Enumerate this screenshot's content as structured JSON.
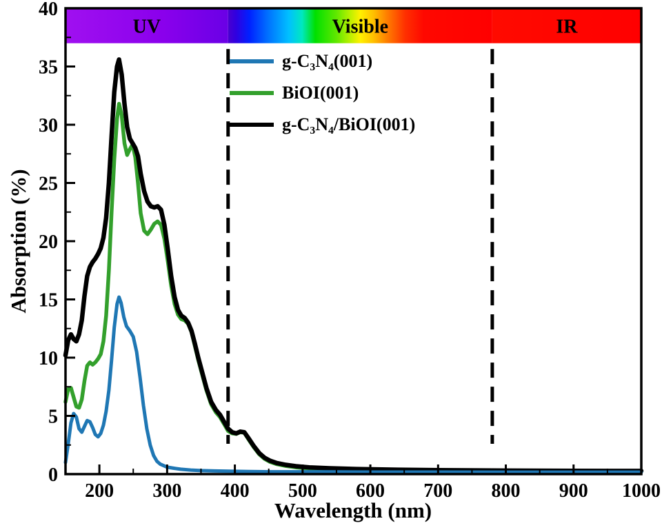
{
  "chart_data": {
    "type": "line",
    "title": "",
    "xlabel": "Wavelength (nm)",
    "ylabel": "Absorption (%)",
    "xlim": [
      150,
      1000
    ],
    "ylim": [
      0,
      40
    ],
    "x_ticks": [
      200,
      300,
      400,
      500,
      600,
      700,
      800,
      900,
      1000
    ],
    "x_minor_ticks": [
      250,
      350,
      450,
      550,
      650,
      750,
      850,
      950
    ],
    "y_ticks": [
      0,
      5,
      10,
      15,
      20,
      25,
      30,
      35,
      40
    ],
    "y_minor_ticks": [
      2.5,
      7.5,
      12.5,
      17.5,
      22.5,
      27.5,
      32.5,
      37.5
    ],
    "axis_color": "#000000",
    "background": "#ffffff",
    "grid": "off",
    "legend_position": "upper-center",
    "band_bottom_value": 37,
    "spectrum_bands": [
      {
        "label": "UV",
        "range": [
          150,
          390
        ],
        "gradient": [
          [
            "0%",
            "#A010F0"
          ],
          [
            "60%",
            "#8A00EC"
          ],
          [
            "100%",
            "#6A00E6"
          ]
        ]
      },
      {
        "label": "Visible",
        "range": [
          390,
          780
        ],
        "gradient": [
          [
            "0%",
            "#4A00D0"
          ],
          [
            "3%",
            "#3000E0"
          ],
          [
            "8%",
            "#0020FF"
          ],
          [
            "15%",
            "#0070FF"
          ],
          [
            "23%",
            "#00C0FF"
          ],
          [
            "28%",
            "#00E8C0"
          ],
          [
            "33%",
            "#00E000"
          ],
          [
            "41%",
            "#60E800"
          ],
          [
            "46%",
            "#B8F000"
          ],
          [
            "50%",
            "#FFF000"
          ],
          [
            "55%",
            "#FFC000"
          ],
          [
            "60%",
            "#FF8000"
          ],
          [
            "67%",
            "#FF3000"
          ],
          [
            "74%",
            "#FF0800"
          ],
          [
            "100%",
            "#FF0000"
          ]
        ]
      },
      {
        "label": "IR",
        "range": [
          780,
          1000
        ],
        "gradient": [
          [
            "0%",
            "#FF0A00"
          ],
          [
            "100%",
            "#FF0000"
          ]
        ]
      }
    ],
    "dashed_boundaries": {
      "x_values": [
        390,
        780
      ],
      "color": "#000000",
      "y_top": 36.5,
      "y_bottom": 2.6,
      "dash": "22 13",
      "width": 5
    },
    "series": [
      {
        "name": "g-C₃N₄(001)",
        "color": "#1F77B4",
        "width": 5,
        "x": [
          150,
          154,
          158,
          162,
          166,
          170,
          174,
          178,
          182,
          186,
          190,
          194,
          198,
          202,
          206,
          210,
          214,
          218,
          222,
          226,
          229,
          232,
          236,
          240,
          245,
          250,
          255,
          260,
          265,
          270,
          275,
          280,
          285,
          290,
          300,
          310,
          320,
          335,
          350,
          370,
          390,
          420,
          450,
          500,
          550,
          600,
          700,
          800,
          900,
          1000
        ],
        "y": [
          1.0,
          2.6,
          4.4,
          5.2,
          4.9,
          3.9,
          3.6,
          4.1,
          4.6,
          4.5,
          4.0,
          3.4,
          3.2,
          3.5,
          4.2,
          5.4,
          7.2,
          9.8,
          12.6,
          14.6,
          15.2,
          14.7,
          13.5,
          12.7,
          12.3,
          11.8,
          10.5,
          8.3,
          5.9,
          3.9,
          2.5,
          1.6,
          1.1,
          0.85,
          0.6,
          0.5,
          0.42,
          0.35,
          0.3,
          0.27,
          0.25,
          0.22,
          0.2,
          0.2,
          0.19,
          0.18,
          0.18,
          0.17,
          0.17,
          0.17
        ]
      },
      {
        "name": "BiOI(001)",
        "color": "#33A02C",
        "width": 5.5,
        "x": [
          150,
          154,
          158,
          162,
          166,
          170,
          174,
          178,
          182,
          186,
          190,
          194,
          198,
          202,
          206,
          210,
          214,
          218,
          222,
          226,
          229,
          233,
          237,
          241,
          245,
          249,
          253,
          257,
          261,
          266,
          271,
          276,
          281,
          286,
          291,
          296,
          301,
          306,
          311,
          316,
          321,
          326,
          331,
          336,
          341,
          346,
          351,
          358,
          365,
          372,
          378,
          384,
          390,
          396,
          402,
          408,
          414,
          420,
          428,
          436,
          444,
          452,
          462,
          475,
          490,
          510,
          540,
          580,
          640,
          720,
          800,
          900,
          1000
        ],
        "y": [
          6.2,
          7.3,
          7.4,
          6.6,
          5.8,
          5.7,
          6.4,
          8.0,
          9.3,
          9.6,
          9.4,
          9.6,
          9.9,
          10.3,
          11.4,
          13.6,
          17.5,
          22.5,
          27.0,
          30.5,
          31.8,
          30.8,
          28.4,
          27.4,
          27.9,
          28.3,
          27.2,
          25.0,
          22.4,
          20.9,
          20.6,
          21.0,
          21.5,
          21.7,
          21.4,
          20.2,
          18.3,
          16.2,
          14.6,
          13.7,
          13.3,
          13.2,
          12.9,
          12.2,
          11.0,
          9.8,
          8.7,
          7.2,
          6.0,
          5.3,
          4.9,
          4.3,
          3.7,
          3.5,
          3.45,
          3.6,
          3.55,
          3.0,
          2.3,
          1.7,
          1.3,
          1.05,
          0.85,
          0.7,
          0.58,
          0.48,
          0.4,
          0.34,
          0.3,
          0.26,
          0.24,
          0.22,
          0.21
        ]
      },
      {
        "name": "g-C₃N₄/BiOI(001)",
        "color": "#000000",
        "width": 6.5,
        "x": [
          150,
          154,
          158,
          162,
          166,
          170,
          174,
          178,
          182,
          186,
          190,
          194,
          198,
          202,
          206,
          210,
          214,
          218,
          222,
          226,
          229,
          233,
          237,
          241,
          245,
          249,
          253,
          257,
          261,
          266,
          271,
          276,
          281,
          286,
          291,
          296,
          301,
          306,
          311,
          316,
          321,
          326,
          331,
          336,
          341,
          346,
          351,
          358,
          365,
          372,
          378,
          384,
          390,
          396,
          402,
          408,
          414,
          420,
          428,
          436,
          444,
          452,
          462,
          475,
          490,
          510,
          540,
          580,
          640,
          720,
          800,
          900,
          1000
        ],
        "y": [
          10.2,
          11.5,
          12.0,
          11.6,
          11.4,
          12.0,
          13.2,
          15.3,
          17.0,
          17.8,
          18.2,
          18.5,
          18.9,
          19.4,
          20.3,
          22.0,
          25.0,
          29.0,
          32.8,
          35.0,
          35.6,
          34.3,
          31.8,
          29.8,
          28.8,
          28.4,
          28.0,
          27.3,
          25.8,
          24.3,
          23.4,
          23.0,
          22.9,
          23.0,
          22.7,
          21.4,
          19.3,
          17.0,
          15.2,
          14.1,
          13.6,
          13.4,
          13.0,
          12.3,
          11.2,
          10.0,
          8.9,
          7.4,
          6.2,
          5.5,
          5.1,
          4.5,
          3.9,
          3.6,
          3.5,
          3.65,
          3.6,
          3.1,
          2.4,
          1.8,
          1.4,
          1.15,
          0.95,
          0.8,
          0.68,
          0.58,
          0.5,
          0.44,
          0.38,
          0.33,
          0.3,
          0.28,
          0.27
        ]
      }
    ]
  }
}
